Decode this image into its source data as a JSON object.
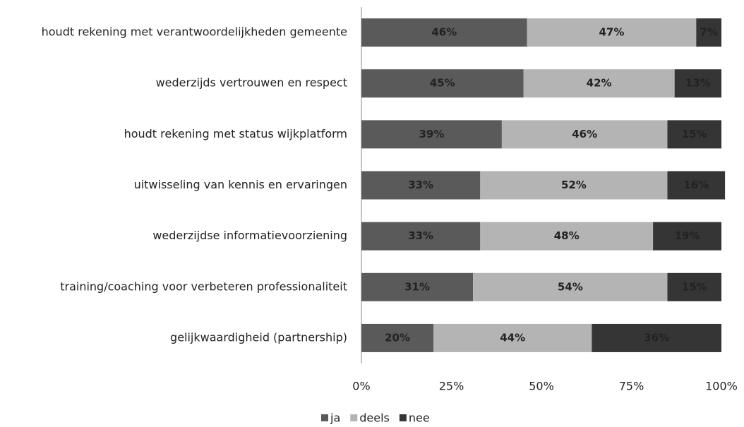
{
  "chart_data": {
    "type": "stacked-bar-horizontal",
    "categories": [
      "houdt rekening met verantwoordelijkheden gemeente",
      "wederzijds vertrouwen en respect",
      "houdt rekening met status wijkplatform",
      "uitwisseling van kennis en ervaringen",
      "wederzijdse informatievoorziening",
      "training/coaching voor verbeteren professionaliteit",
      "gelijkwaardigheid (partnership)"
    ],
    "series": [
      {
        "name": "ja",
        "color": "#5a5a5a",
        "values": [
          46,
          45,
          39,
          33,
          33,
          31,
          20
        ],
        "value_labels": [
          "46%",
          "45%",
          "39%",
          "33%",
          "33%",
          "31%",
          "20%"
        ]
      },
      {
        "name": "deels",
        "color": "#b4b4b4",
        "values": [
          47,
          42,
          46,
          52,
          48,
          54,
          44
        ],
        "value_labels": [
          "47%",
          "42%",
          "46%",
          "52%",
          "48%",
          "54%",
          "44%"
        ]
      },
      {
        "name": "nee",
        "color": "#353535",
        "values": [
          7,
          13,
          15,
          16,
          19,
          15,
          36
        ],
        "value_labels": [
          "7%",
          "13%",
          "15%",
          "16%",
          "19%",
          "15%",
          "36%"
        ]
      }
    ],
    "xlim": [
      0,
      100
    ],
    "xticks": [
      {
        "value": 0,
        "label": "0%"
      },
      {
        "value": 25,
        "label": "25%"
      },
      {
        "value": 50,
        "label": "50%"
      },
      {
        "value": 75,
        "label": "75%"
      },
      {
        "value": 100,
        "label": "100%"
      }
    ],
    "legend": "bottom"
  }
}
